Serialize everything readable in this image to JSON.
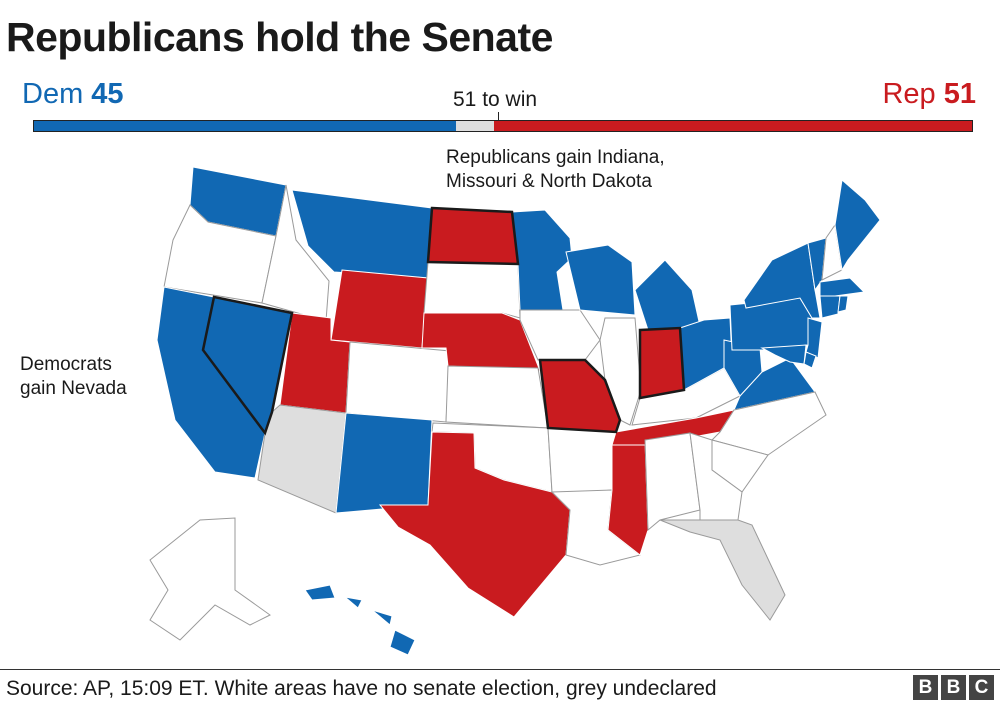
{
  "title": "Republicans hold the Senate",
  "tally": {
    "dem_label": "Dem",
    "dem_seats": "45",
    "rep_label": "Rep",
    "rep_seats": "51",
    "to_win": "51 to win",
    "bar": [
      {
        "party": "dem",
        "seats": 45,
        "color": "#1168b3"
      },
      {
        "party": "undeclared",
        "seats": 4,
        "color": "#dedede"
      },
      {
        "party": "rep",
        "seats": 51,
        "color": "#c91b1f"
      }
    ]
  },
  "annotations": {
    "republicans_gain": "Republicans gain Indiana,\nMissouri & North Dakota",
    "democrats_gain": "Democrats\ngain Nevada"
  },
  "colors": {
    "dem": "#1168b3",
    "rep": "#c91b1f",
    "undeclared": "#dedede",
    "no_election": "#ffffff",
    "border": "#9a9a9a"
  },
  "states": {
    "WA": "dem",
    "OR": "none",
    "CA": "dem",
    "NV": "dem",
    "ID": "none",
    "MT": "dem",
    "WY": "rep",
    "UT": "rep",
    "AZ": "undeclared",
    "CO": "none",
    "NM": "dem",
    "ND": "rep",
    "SD": "none",
    "NE": "rep",
    "KS": "none",
    "OK": "none",
    "TX": "rep",
    "MN": "dem",
    "IA": "none",
    "MO": "rep",
    "AR": "none",
    "LA": "none",
    "WI": "dem",
    "IL": "none",
    "MS": "rep",
    "MI": "dem",
    "IN": "rep",
    "KY": "none",
    "TN": "rep",
    "AL": "none",
    "OH": "dem",
    "WV": "dem",
    "VA": "dem",
    "NC": "none",
    "SC": "none",
    "GA": "none",
    "FL": "undeclared",
    "PA": "dem",
    "NY": "dem",
    "VT": "dem",
    "NH": "none",
    "ME": "dem",
    "MA": "dem",
    "CT": "dem",
    "RI": "dem",
    "NJ": "dem",
    "MD": "dem",
    "DE": "dem",
    "AK": "none",
    "HI": "dem"
  },
  "gains": [
    "NV",
    "ND",
    "MO",
    "IN"
  ],
  "footer": {
    "source": "Source: AP, 15:09 ET. White areas have no senate election, grey undeclared",
    "logo": [
      "B",
      "B",
      "C"
    ]
  }
}
